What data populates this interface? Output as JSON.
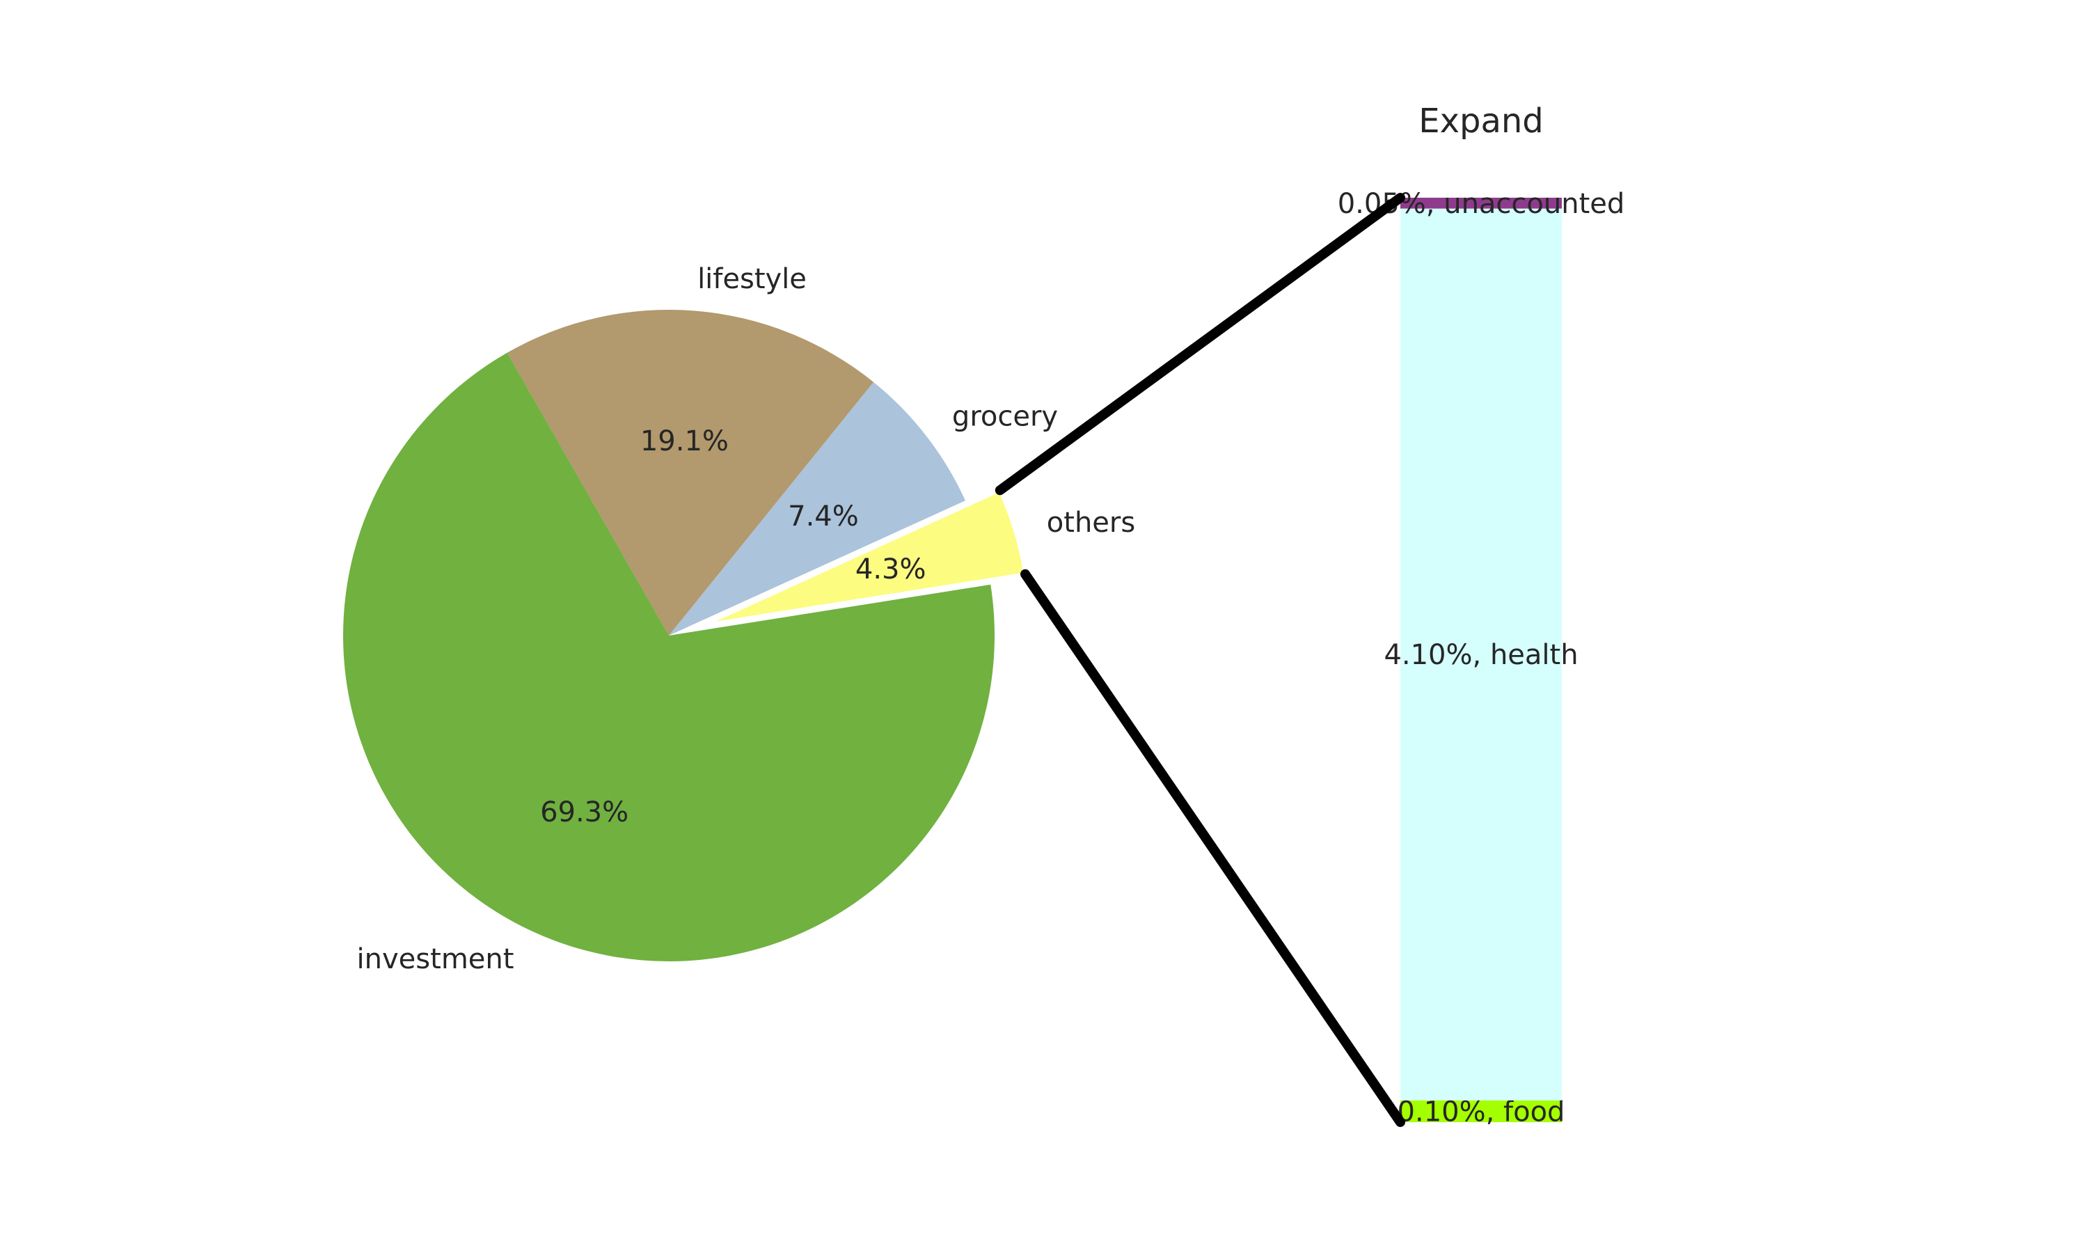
{
  "chart_data": [
    {
      "type": "pie",
      "slices": [
        {
          "label": "others",
          "percent_label": "4.3%",
          "value": 4.3,
          "color": "#fcfc81",
          "exploded": true
        },
        {
          "label": "grocery",
          "percent_label": "7.4%",
          "value": 7.4,
          "color": "#abc3db"
        },
        {
          "label": "lifestyle",
          "percent_label": "19.1%",
          "value": 19.1,
          "color": "#b2996e"
        },
        {
          "label": "investment",
          "percent_label": "69.3%",
          "value": 69.3,
          "color": "#70b140"
        }
      ],
      "start_angle_deg": 9,
      "direction": "counterclockwise"
    },
    {
      "type": "bar",
      "stacked": true,
      "title": "Expand",
      "segments": [
        {
          "label": "0.10%, food",
          "value": 0.1,
          "color": "#a4ff00"
        },
        {
          "label": "4.10%, health",
          "value": 4.1,
          "color": "#d5fffd"
        },
        {
          "label": "0.05%, unaccounted",
          "value": 0.05,
          "color": "#8e3b8e"
        }
      ],
      "connects_to_slice": "others",
      "connector_color": "#000000"
    }
  ]
}
